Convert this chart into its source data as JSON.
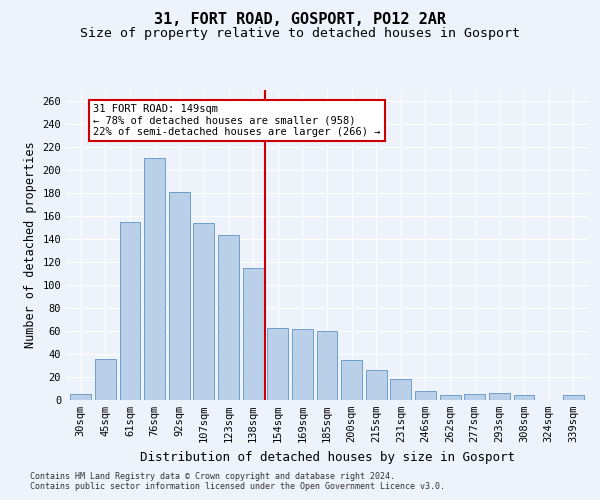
{
  "title1": "31, FORT ROAD, GOSPORT, PO12 2AR",
  "title2": "Size of property relative to detached houses in Gosport",
  "xlabel": "Distribution of detached houses by size in Gosport",
  "ylabel": "Number of detached properties",
  "categories": [
    "30sqm",
    "45sqm",
    "61sqm",
    "76sqm",
    "92sqm",
    "107sqm",
    "123sqm",
    "138sqm",
    "154sqm",
    "169sqm",
    "185sqm",
    "200sqm",
    "215sqm",
    "231sqm",
    "246sqm",
    "262sqm",
    "277sqm",
    "293sqm",
    "308sqm",
    "324sqm",
    "339sqm"
  ],
  "values": [
    5,
    36,
    155,
    211,
    181,
    154,
    144,
    115,
    63,
    62,
    60,
    35,
    26,
    18,
    8,
    4,
    5,
    6,
    4,
    0,
    4
  ],
  "bar_color": "#bad0e8",
  "bar_edge_color": "#6ca0cb",
  "vline_color": "#cc0000",
  "annotation_text": "31 FORT ROAD: 149sqm\n← 78% of detached houses are smaller (958)\n22% of semi-detached houses are larger (266) →",
  "annotation_box_color": "#ffffff",
  "annotation_box_edge": "#cc0000",
  "ylim": [
    0,
    270
  ],
  "yticks": [
    0,
    20,
    40,
    60,
    80,
    100,
    120,
    140,
    160,
    180,
    200,
    220,
    240,
    260
  ],
  "footnote1": "Contains HM Land Registry data © Crown copyright and database right 2024.",
  "footnote2": "Contains public sector information licensed under the Open Government Licence v3.0.",
  "background_color": "#eef2fa",
  "grid_color": "#ffffff",
  "title1_fontsize": 11,
  "title2_fontsize": 9.5,
  "tick_fontsize": 7.5,
  "ylabel_fontsize": 8.5,
  "xlabel_fontsize": 9,
  "footnote_fontsize": 6,
  "annotation_fontsize": 7.5
}
